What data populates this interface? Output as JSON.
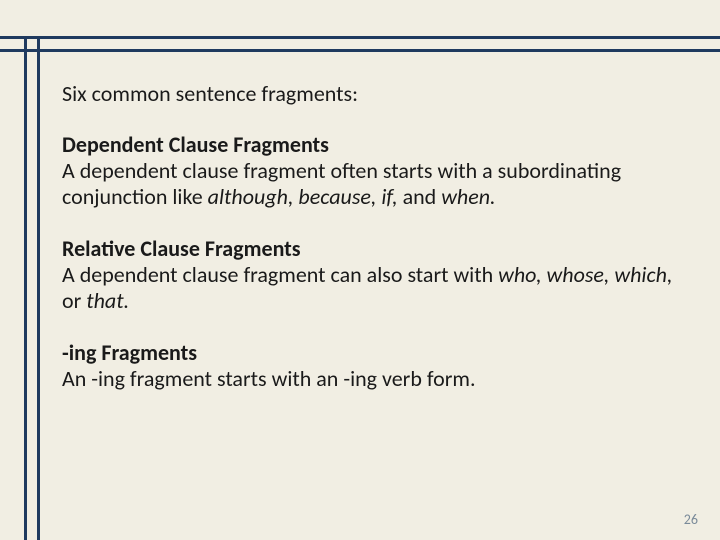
{
  "colors": {
    "background": "#f1eee3",
    "rule": "#1f3a5f",
    "text": "#1a1a1a",
    "pagenum": "#7a8a99"
  },
  "typography": {
    "body_fontsize_pt": 17,
    "head_fontweight": 700,
    "font_family": "Calibri"
  },
  "intro": "Six common sentence fragments:",
  "sections": [
    {
      "heading": "Dependent Clause Fragments",
      "body_pre": "A dependent clause fragment often starts with a subordinating conjunction like ",
      "body_italic": "although, because, if,",
      "body_mid": " and ",
      "body_italic2": "when.",
      "body_post": ""
    },
    {
      "heading": "Relative Clause Fragments",
      "body_pre": "A dependent clause fragment can also start with ",
      "body_italic": "who, whose, which,",
      "body_mid": " or ",
      "body_italic2": "that.",
      "body_post": ""
    },
    {
      "heading": "-ing Fragments",
      "body_pre": "An -ing fragment starts with an -ing verb form.",
      "body_italic": "",
      "body_mid": "",
      "body_italic2": "",
      "body_post": ""
    }
  ],
  "page_number": "26"
}
